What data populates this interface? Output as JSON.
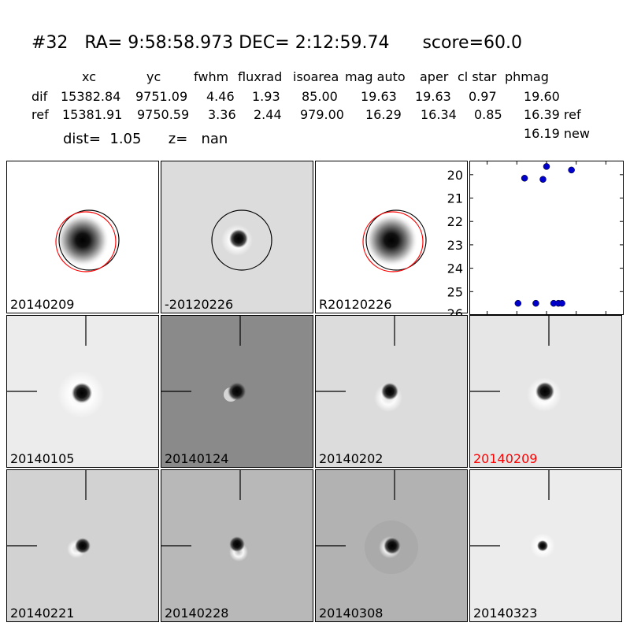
{
  "title": "#32   RA= 9:58:58.973 DEC= 2:12:59.74      score=60.0",
  "columns": [
    "xc",
    "yc",
    "fwhm",
    "fluxrad",
    "isoarea",
    "mag auto",
    "aper",
    "cl star",
    "phmag"
  ],
  "dif_row": {
    "label": "dif",
    "values": [
      "15382.84",
      "9751.09",
      "4.46",
      "1.93",
      "85.00",
      "19.63",
      "19.63",
      "0.97",
      "19.60"
    ]
  },
  "ref_row": {
    "label": "ref",
    "values": [
      "15381.91",
      "9750.59",
      "3.36",
      "2.44",
      "979.00",
      "16.29",
      "16.34",
      "0.85",
      "16.39 ref"
    ]
  },
  "new_phmag": "16.19 new",
  "dist_line": "dist=  1.05      z=   nan",
  "top_panels": [
    {
      "label": "20140209"
    },
    {
      "label": "-20120226"
    },
    {
      "label": "R20120226"
    }
  ],
  "stamps": [
    {
      "label": "20140105",
      "highlight": false
    },
    {
      "label": "20140124",
      "highlight": false
    },
    {
      "label": "20140202",
      "highlight": false
    },
    {
      "label": "20140209",
      "highlight": true
    },
    {
      "label": "20140221",
      "highlight": false
    },
    {
      "label": "20140228",
      "highlight": false
    },
    {
      "label": "20140308",
      "highlight": false
    },
    {
      "label": "20140323",
      "highlight": false
    }
  ],
  "colors": {
    "marker": "#0000cc",
    "highlight_label": "#ff0000",
    "ref_circle": "#ff0000"
  },
  "chart_data": {
    "type": "scatter",
    "title": "",
    "xlabel": "",
    "ylabel": "",
    "xlim": [
      -130,
      130
    ],
    "ylim": [
      26,
      19.4
    ],
    "y_inverted": true,
    "xticks": [
      "-100",
      "-50",
      "0",
      "50",
      "100"
    ],
    "xtick_values": [
      -100,
      -50,
      0,
      50,
      100
    ],
    "yticks": [
      "20",
      "21",
      "22",
      "23",
      "24",
      "25",
      "26"
    ],
    "ytick_values": [
      20,
      21,
      22,
      23,
      24,
      25,
      26
    ],
    "series": [
      {
        "x": [
          -37,
          -6,
          0,
          42,
          -48,
          -18,
          12,
          20,
          26
        ],
        "y": [
          20.15,
          20.2,
          19.65,
          19.8,
          25.5,
          25.5,
          25.5,
          25.5,
          25.5
        ]
      }
    ]
  }
}
